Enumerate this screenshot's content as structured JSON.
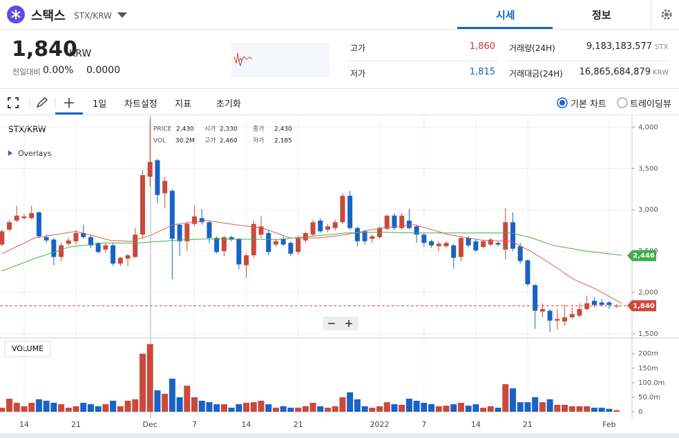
{
  "header": {
    "name": "스택스",
    "pair": "STX/KRW",
    "tabs": [
      "시세",
      "정보"
    ]
  },
  "price": {
    "value": "1,840",
    "unit": "KRW",
    "change_label": "전일대비",
    "change_pct": "0.00%",
    "change_abs": "0.0000"
  },
  "stats": {
    "high_label": "고가",
    "high": "1,860",
    "low_label": "저가",
    "low": "1,815",
    "volume_label": "거래량(24H)",
    "volume": "9,183,183.577",
    "volume_unit": "STX",
    "amount_label": "거래대금(24H)",
    "amount": "16,865,684,879",
    "amount_unit": "KRW"
  },
  "toolbar": {
    "interval": "1일",
    "settings": "차트설정",
    "indicators": "지표",
    "reset": "초기화",
    "basic": "기본 차트",
    "tradingview": "트레이딩뷰"
  },
  "chart_data": {
    "type": "candlestick",
    "title": "STX/KRW",
    "overlays": "Overlays",
    "volume_title": "VOLUME",
    "info": [
      {
        "label": "PRICE",
        "value": "2,430"
      },
      {
        "label": "시가",
        "value": "2,330"
      },
      {
        "label": "종가",
        "value": "2,430"
      },
      {
        "label": "VOL",
        "value": "30.2M"
      },
      {
        "label": "고가",
        "value": "2,460"
      },
      {
        "label": "저가",
        "value": "2,185"
      }
    ],
    "categories": [
      null,
      null,
      null,
      "14",
      null,
      null,
      null,
      null,
      null,
      null,
      "21",
      null,
      null,
      null,
      null,
      null,
      null,
      null,
      null,
      null,
      "Dec",
      null,
      null,
      null,
      null,
      null,
      "7",
      null,
      null,
      null,
      null,
      null,
      null,
      "14",
      null,
      null,
      null,
      null,
      null,
      null,
      "21",
      null,
      null,
      null,
      null,
      null,
      null,
      null,
      null,
      null,
      null,
      "2022",
      null,
      null,
      null,
      null,
      null,
      "7",
      null,
      null,
      null,
      null,
      null,
      null,
      "14",
      null,
      null,
      null,
      null,
      null,
      null,
      "21",
      null,
      null,
      null,
      null,
      null,
      null,
      null,
      null,
      null,
      null,
      "Feb",
      null
    ],
    "open": [
      2580,
      2760,
      2870,
      2900,
      2900,
      2970,
      2670,
      2640,
      2430,
      2590,
      2620,
      2720,
      2670,
      2600,
      2520,
      2570,
      2350,
      2410,
      2430,
      2700,
      3400,
      3600,
      3200,
      3230,
      2820,
      2620,
      2830,
      2900,
      2850,
      2660,
      2500,
      2670,
      2650,
      2330,
      2450,
      2700,
      2720,
      2580,
      2650,
      2600,
      2490,
      2630,
      2700,
      2870,
      2760,
      2780,
      2850,
      3170,
      2780,
      2740,
      2650,
      2670,
      2770,
      2930,
      2780,
      2870,
      2800,
      2700,
      2620,
      2560,
      2560,
      2570,
      2430,
      2660,
      2620,
      2550,
      2580,
      2600,
      2520,
      2850,
      2560,
      2390,
      2090,
      1770,
      1780,
      1660,
      1650,
      1700,
      1720,
      1800,
      1900,
      1880,
      1880,
      1830
    ],
    "high": [
      2760,
      2880,
      3050,
      2950,
      3050,
      2980,
      2700,
      2660,
      2600,
      2660,
      2760,
      2820,
      2700,
      2610,
      2600,
      2600,
      2430,
      2470,
      2780,
      3480,
      4100,
      3620,
      3400,
      3250,
      2830,
      2860,
      3050,
      3010,
      2870,
      2680,
      2680,
      2690,
      2660,
      2480,
      2870,
      2920,
      2750,
      2650,
      2680,
      2620,
      2690,
      2740,
      2880,
      2900,
      2830,
      2880,
      3200,
      3230,
      2800,
      2760,
      2700,
      2800,
      2940,
      2960,
      2960,
      3010,
      2820,
      2720,
      2640,
      2620,
      2620,
      2590,
      2680,
      2680,
      2640,
      2640,
      2660,
      2620,
      3020,
      2970,
      2600,
      2400,
      2100,
      1870,
      1800,
      1800,
      1850,
      1820,
      1870,
      1960,
      1940,
      1920,
      1900,
      1860
    ],
    "low": [
      2560,
      2740,
      2850,
      2880,
      2880,
      2660,
      2600,
      2330,
      2380,
      2570,
      2580,
      2650,
      2540,
      2470,
      2480,
      2320,
      2320,
      2320,
      2420,
      2650,
      3280,
      3080,
      3020,
      2160,
      2440,
      2500,
      2800,
      2820,
      2600,
      2470,
      2440,
      2620,
      2280,
      2180,
      2420,
      2660,
      2450,
      2550,
      2560,
      2440,
      2460,
      2600,
      2680,
      2720,
      2730,
      2750,
      2830,
      2760,
      2560,
      2580,
      2600,
      2650,
      2750,
      2760,
      2760,
      2760,
      2600,
      2550,
      2540,
      2500,
      2540,
      2290,
      2380,
      2550,
      2490,
      2530,
      2560,
      2560,
      2400,
      2500,
      2350,
      2080,
      1560,
      1700,
      1520,
      1550,
      1600,
      1680,
      1700,
      1780,
      1820,
      1830,
      1800,
      1815
    ],
    "close": [
      2740,
      2850,
      2930,
      2920,
      2960,
      2680,
      2630,
      2430,
      2570,
      2630,
      2720,
      2670,
      2570,
      2490,
      2570,
      2350,
      2420,
      2450,
      2700,
      3420,
      3580,
      3180,
      3350,
      2650,
      2620,
      2830,
      2920,
      2850,
      2660,
      2490,
      2670,
      2640,
      2340,
      2450,
      2830,
      2800,
      2490,
      2620,
      2580,
      2470,
      2660,
      2720,
      2850,
      2740,
      2800,
      2850,
      3170,
      2780,
      2620,
      2620,
      2680,
      2780,
      2930,
      2780,
      2930,
      2780,
      2700,
      2600,
      2570,
      2590,
      2600,
      2420,
      2660,
      2570,
      2510,
      2620,
      2640,
      2580,
      2850,
      2530,
      2380,
      2100,
      1780,
      1800,
      1660,
      1680,
      1700,
      1740,
      1800,
      1870,
      1850,
      1850,
      1850,
      1840
    ],
    "volume": [
      14,
      45,
      31,
      19,
      31,
      43,
      38,
      31,
      26,
      14,
      19,
      31,
      26,
      19,
      26,
      38,
      19,
      38,
      43,
      200,
      233,
      74,
      62,
      114,
      50,
      90,
      50,
      38,
      33,
      26,
      26,
      14,
      26,
      31,
      33,
      38,
      26,
      14,
      19,
      14,
      14,
      19,
      31,
      19,
      14,
      19,
      50,
      67,
      43,
      19,
      14,
      19,
      33,
      26,
      24,
      45,
      38,
      31,
      26,
      19,
      21,
      26,
      31,
      21,
      26,
      14,
      19,
      14,
      95,
      81,
      33,
      33,
      50,
      33,
      43,
      24,
      24,
      19,
      19,
      19,
      14,
      14,
      10,
      5
    ],
    "up_color": "#c84a3c",
    "down_color": "#1763c6",
    "ylim": [
      1450,
      4120
    ],
    "yticks": [
      {
        "value": 1500,
        "label": "1,500"
      },
      {
        "value": 2000,
        "label": "2,000"
      },
      {
        "value": 2500,
        "label": "2,500"
      },
      {
        "value": 3000,
        "label": "3,000"
      },
      {
        "value": 3500,
        "label": "3,500"
      },
      {
        "value": 4000,
        "label": "4,000"
      }
    ],
    "volume_ylim": [
      0,
      235
    ],
    "volume_yticks": [
      0,
      {
        "value": 50,
        "label": "50.0m"
      },
      {
        "value": 100,
        "label": "100.0m"
      },
      {
        "value": 150,
        "label": "150m"
      },
      {
        "value": 200,
        "label": "200m"
      }
    ],
    "ma": [
      {
        "color": "#e05a4e",
        "x": [
          0,
          4.4,
          10,
          14.7,
          17.5,
          20.3,
          23.1,
          27.7,
          31.5,
          35.2,
          38.9,
          42.7,
          46.4,
          51.1,
          55.7,
          60.4,
          65,
          68.8,
          71.6,
          74.4,
          77.2,
          80,
          83.7
        ],
        "values": [
          2470,
          2660,
          2740,
          2630,
          2620,
          2700,
          2820,
          2870,
          2820,
          2780,
          2660,
          2660,
          2700,
          2780,
          2820,
          2700,
          2630,
          2620,
          2490,
          2330,
          2160,
          2050,
          1870
        ]
      },
      {
        "color": "#3fae49",
        "x": [
          0,
          4.4,
          9.1,
          13.7,
          18.4,
          23.1,
          27.7,
          37.1,
          41.7,
          46.4,
          51.1,
          55.7,
          60.4,
          65,
          68.8,
          71.6,
          74.4,
          79,
          83.7
        ],
        "values": [
          2260,
          2410,
          2550,
          2600,
          2600,
          2630,
          2650,
          2640,
          2680,
          2720,
          2730,
          2720,
          2720,
          2720,
          2720,
          2660,
          2570,
          2500,
          2450
        ]
      }
    ],
    "tags": [
      {
        "value": 2446,
        "label": "2,446",
        "color": "#3fae49"
      },
      {
        "value": 1840,
        "label": "1,840",
        "color": "#d2473b"
      }
    ],
    "grid": true
  }
}
